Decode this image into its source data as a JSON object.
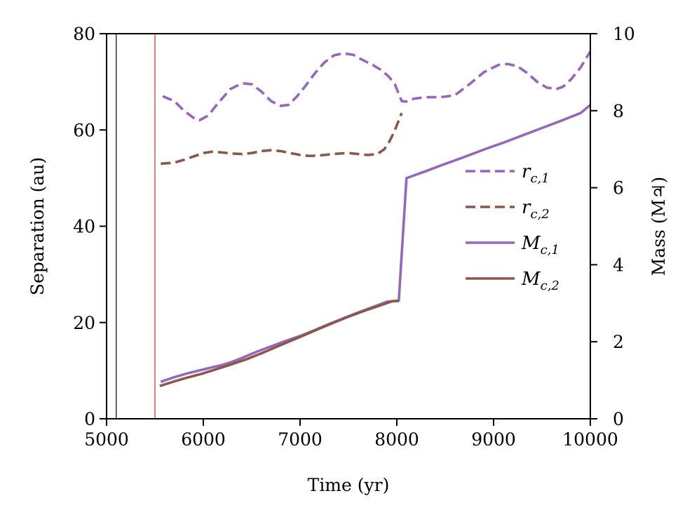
{
  "chart_data": {
    "type": "line",
    "xlabel": "Time (yr)",
    "ylabel_left": "Separation (au)",
    "ylabel_right": "Mass (M♃)",
    "xlim": [
      5000,
      10000
    ],
    "ylim_left": [
      0,
      80
    ],
    "ylim_right": [
      0,
      10
    ],
    "x_ticks": [
      5000,
      6000,
      7000,
      8000,
      9000,
      10000
    ],
    "y_ticks_left": [
      0,
      20,
      40,
      60,
      80
    ],
    "y_ticks_right": [
      0,
      2,
      4,
      6,
      8,
      10
    ],
    "grid": false,
    "legend_position": "center-right",
    "vertical_lines": [
      {
        "x": 5100,
        "color": "#000000"
      },
      {
        "x": 5500,
        "color": "#d62728"
      }
    ],
    "series": [
      {
        "name": "r_c,1",
        "legend": [
          "r",
          "c,1"
        ],
        "axis": "left",
        "style": "dashed",
        "color": "#9467bd",
        "x": [
          5580,
          5700,
          5800,
          5900,
          5960,
          6050,
          6150,
          6280,
          6400,
          6500,
          6600,
          6700,
          6800,
          6880,
          6960,
          7050,
          7150,
          7250,
          7350,
          7450,
          7550,
          7650,
          7750,
          7850,
          7920,
          7980,
          8050,
          8100,
          8180,
          8300,
          8450,
          8600,
          8750,
          8900,
          9050,
          9150,
          9250,
          9350,
          9450,
          9550,
          9650,
          9720,
          9800,
          9900,
          10000
        ],
        "y": [
          67.0,
          66.0,
          64.0,
          62.5,
          62.0,
          63.0,
          65.5,
          68.5,
          69.7,
          69.5,
          68.0,
          66.0,
          65.0,
          65.2,
          66.8,
          69.0,
          71.7,
          74.0,
          75.5,
          75.9,
          75.6,
          74.5,
          73.5,
          72.3,
          71.0,
          69.5,
          66.0,
          65.9,
          66.5,
          66.8,
          66.8,
          67.2,
          69.5,
          72.0,
          73.5,
          73.7,
          73.2,
          71.8,
          70.0,
          68.8,
          68.5,
          69.0,
          70.5,
          73.0,
          76.3
        ]
      },
      {
        "name": "r_c,2",
        "legend": [
          "r",
          "c,2"
        ],
        "axis": "left",
        "style": "dashed",
        "color": "#8c564b",
        "x": [
          5560,
          5700,
          5800,
          5900,
          6000,
          6100,
          6200,
          6300,
          6400,
          6500,
          6600,
          6700,
          6800,
          6900,
          7000,
          7100,
          7200,
          7300,
          7400,
          7500,
          7600,
          7700,
          7800,
          7870,
          7920,
          7970,
          8020,
          8050
        ],
        "y": [
          53.0,
          53.2,
          53.8,
          54.5,
          55.2,
          55.5,
          55.3,
          55.1,
          55.0,
          55.2,
          55.6,
          55.8,
          55.6,
          55.2,
          54.8,
          54.6,
          54.7,
          54.9,
          55.1,
          55.2,
          55.0,
          54.8,
          55.0,
          56.0,
          57.5,
          59.5,
          62.0,
          63.5
        ]
      },
      {
        "name": "M_c,1",
        "legend": [
          "M",
          "c,1"
        ],
        "axis": "right",
        "style": "solid",
        "color": "#9467bd",
        "x": [
          5560,
          5700,
          5850,
          6000,
          6100,
          6200,
          6300,
          6400,
          6550,
          6700,
          6850,
          7000,
          7150,
          7300,
          7450,
          7600,
          7750,
          7900,
          8020,
          8100,
          8300,
          8500,
          8700,
          8900,
          9100,
          9300,
          9500,
          9700,
          9900,
          10000
        ],
        "y": [
          0.96,
          1.08,
          1.19,
          1.28,
          1.34,
          1.4,
          1.48,
          1.58,
          1.74,
          1.88,
          2.02,
          2.15,
          2.3,
          2.46,
          2.61,
          2.76,
          2.9,
          3.04,
          3.07,
          6.25,
          6.43,
          6.62,
          6.8,
          6.99,
          7.17,
          7.36,
          7.55,
          7.74,
          7.94,
          8.15
        ]
      },
      {
        "name": "M_c,2",
        "legend": [
          "M",
          "c,2"
        ],
        "axis": "right",
        "style": "solid",
        "color": "#8c564b",
        "x": [
          5550,
          5700,
          5850,
          6000,
          6150,
          6300,
          6450,
          6600,
          6750,
          6900,
          7050,
          7200,
          7350,
          7500,
          7650,
          7800,
          7950,
          8020
        ],
        "y": [
          0.85,
          0.97,
          1.08,
          1.18,
          1.3,
          1.42,
          1.55,
          1.7,
          1.86,
          2.02,
          2.18,
          2.34,
          2.5,
          2.65,
          2.79,
          2.92,
          3.05,
          3.06
        ]
      }
    ]
  }
}
